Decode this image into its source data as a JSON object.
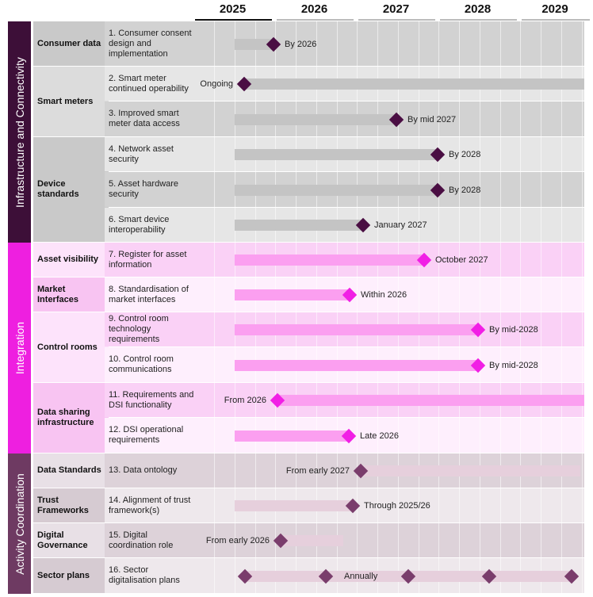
{
  "years": [
    "2025",
    "2026",
    "2027",
    "2028",
    "2029"
  ],
  "sections": [
    {
      "label": "Infrastructure and Connectivity",
      "color": "#3d0f38"
    },
    {
      "label": "Integration",
      "color": "#ee1fe0"
    },
    {
      "label": "Activity Coordination",
      "color": "#6e3a62"
    }
  ],
  "categories": [
    "Consumer data",
    "Smart meters",
    "Device standards",
    "Asset visibility",
    "Market Interfaces",
    "Control rooms",
    "Data sharing infrastructure",
    "Data Standards",
    "Trust Frameworks",
    "Digital Governance",
    "Sector plans"
  ],
  "items": [
    {
      "text": "1. Consumer consent design and implementation",
      "note": "By 2026"
    },
    {
      "text": "2. Smart meter continued operability",
      "note": "Ongoing"
    },
    {
      "text": "3. Improved smart meter data access",
      "note": "By mid 2027"
    },
    {
      "text": "4. Network asset security",
      "note": "By 2028"
    },
    {
      "text": "5. Asset hardware security",
      "note": "By 2028"
    },
    {
      "text": "6. Smart device interoperability",
      "note": "January 2027"
    },
    {
      "text": "7. Register for asset information",
      "note": "October 2027"
    },
    {
      "text": "8. Standardisation of market interfaces",
      "note": "Within 2026"
    },
    {
      "text": "9. Control room technology requirements",
      "note": "By mid-2028"
    },
    {
      "text": "10. Control room communications",
      "note": "By mid-2028"
    },
    {
      "text": "11. Requirements and DSI functionality",
      "note": "From 2026"
    },
    {
      "text": "12. DSI operational requirements",
      "note": "Late 2026"
    },
    {
      "text": "13. Data ontology",
      "note": "From early 2027"
    },
    {
      "text": "14. Alignment of trust framework(s)",
      "note": "Through 2025/26"
    },
    {
      "text": "15. Digital coordination role",
      "note": "From early 2026"
    },
    {
      "text": "16. Sector digitalisation plans",
      "note": "Annually"
    }
  ]
}
